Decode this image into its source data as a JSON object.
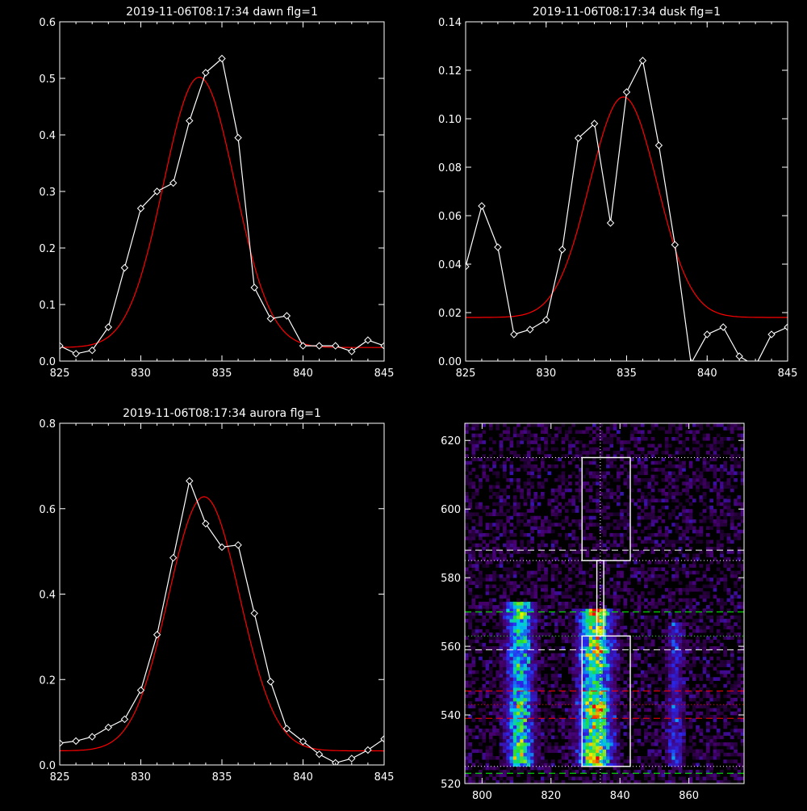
{
  "chart_data": [
    {
      "type": "line",
      "title": "2019-11-06T08:17:34 dawn flg=1",
      "xlim": [
        825,
        845
      ],
      "ylim": [
        0,
        0.6
      ],
      "x_ticks": [
        "825",
        "830",
        "835",
        "840",
        "845"
      ],
      "y_ticks": [
        "0.0",
        "0.1",
        "0.2",
        "0.3",
        "0.4",
        "0.5",
        "0.6"
      ],
      "series": [
        {
          "kind": "data",
          "color": "#ffffff",
          "marker": "diamond",
          "x": [
            825,
            826,
            827,
            828,
            829,
            830,
            831,
            832,
            833,
            834,
            835,
            836,
            837,
            838,
            839,
            840,
            841,
            842,
            843,
            844,
            845
          ],
          "values": [
            0.027,
            0.013,
            0.019,
            0.06,
            0.165,
            0.27,
            0.3,
            0.315,
            0.425,
            0.51,
            0.535,
            0.395,
            0.13,
            0.075,
            0.08,
            0.027,
            0.027,
            0.027,
            0.017,
            0.037,
            0.027
          ]
        },
        {
          "kind": "fit",
          "color": "#ff0000",
          "model": {
            "amplitude": 0.478,
            "center": 833.6,
            "sigma": 2.2,
            "baseline": 0.024
          }
        }
      ]
    },
    {
      "type": "line",
      "title": "2019-11-06T08:17:34 dusk flg=1",
      "xlim": [
        825,
        845
      ],
      "ylim": [
        0,
        0.14
      ],
      "x_ticks": [
        "825",
        "830",
        "835",
        "840",
        "845"
      ],
      "y_ticks": [
        "0.00",
        "0.02",
        "0.04",
        "0.06",
        "0.08",
        "0.10",
        "0.12",
        "0.14"
      ],
      "series": [
        {
          "kind": "data",
          "color": "#ffffff",
          "marker": "diamond",
          "x": [
            825,
            826,
            827,
            828,
            829,
            830,
            831,
            832,
            833,
            834,
            835,
            836,
            837,
            838,
            839,
            840,
            841,
            842,
            843,
            844,
            845
          ],
          "values": [
            0.039,
            0.064,
            0.047,
            0.011,
            0.013,
            0.017,
            0.046,
            0.092,
            0.098,
            0.057,
            0.111,
            0.124,
            0.089,
            0.048,
            -0.001,
            0.011,
            0.014,
            0.002,
            -0.002,
            0.011,
            0.014
          ]
        },
        {
          "kind": "fit",
          "color": "#ff0000",
          "model": {
            "amplitude": 0.091,
            "center": 834.8,
            "sigma": 2.1,
            "baseline": 0.018
          }
        }
      ]
    },
    {
      "type": "line",
      "title": "2019-11-06T08:17:34 aurora flg=1",
      "xlim": [
        825,
        845
      ],
      "ylim": [
        0,
        0.8
      ],
      "x_ticks": [
        "825",
        "830",
        "835",
        "840",
        "845"
      ],
      "y_ticks": [
        "0.0",
        "0.2",
        "0.4",
        "0.6",
        "0.8"
      ],
      "series": [
        {
          "kind": "data",
          "color": "#ffffff",
          "marker": "diamond",
          "x": [
            825,
            826,
            827,
            828,
            829,
            830,
            831,
            832,
            833,
            834,
            835,
            836,
            837,
            838,
            839,
            840,
            841,
            842,
            843,
            844,
            845
          ],
          "values": [
            0.051,
            0.056,
            0.066,
            0.088,
            0.107,
            0.175,
            0.305,
            0.485,
            0.665,
            0.565,
            0.51,
            0.515,
            0.355,
            0.195,
            0.085,
            0.055,
            0.025,
            0.005,
            0.015,
            0.035,
            0.061
          ]
        },
        {
          "kind": "fit",
          "color": "#ff0000",
          "model": {
            "amplitude": 0.595,
            "center": 833.9,
            "sigma": 2.2,
            "baseline": 0.033
          }
        }
      ]
    },
    {
      "type": "heatmap",
      "title": "",
      "xlim": [
        795,
        876
      ],
      "ylim": [
        520,
        625
      ],
      "x_ticks": [
        "800",
        "820",
        "840",
        "860"
      ],
      "y_ticks": [
        "520",
        "540",
        "560",
        "580",
        "600",
        "620"
      ],
      "bands": [
        {
          "x": 811,
          "x_width": 2.5,
          "y_min": 525,
          "y_max": 572,
          "peak": 0.75
        },
        {
          "x": 833,
          "x_width": 3.0,
          "y_min": 525,
          "y_max": 570,
          "peak": 1.0
        },
        {
          "x": 856,
          "x_width": 1.5,
          "y_min": 525,
          "y_max": 566,
          "peak": 0.35
        }
      ],
      "noise_level": 0.12,
      "boxes": [
        {
          "x": [
            829,
            843
          ],
          "y": [
            525,
            563
          ],
          "color": "#ffffff"
        },
        {
          "x": [
            829,
            843
          ],
          "y": [
            585,
            615
          ],
          "color": "#ffffff"
        },
        {
          "x": [
            833.3,
            835.3
          ],
          "y": [
            563,
            585
          ],
          "color": "#ffffff"
        }
      ],
      "hlines": [
        {
          "y": 615,
          "style": "dotted",
          "color": "#ffffff"
        },
        {
          "y": 588,
          "style": "dashed",
          "color": "#ffffff"
        },
        {
          "y": 585,
          "style": "dotted",
          "color": "#ffffff"
        },
        {
          "y": 570,
          "style": "dashed",
          "color": "#00ff00"
        },
        {
          "y": 563,
          "style": "dotted",
          "color": "#00ff00"
        },
        {
          "y": 559,
          "style": "dashed",
          "color": "#ffffff"
        },
        {
          "y": 547,
          "style": "dashed",
          "color": "#ff0000"
        },
        {
          "y": 543,
          "style": "dotted",
          "color": "#ff0000"
        },
        {
          "y": 539,
          "style": "dashed",
          "color": "#ff0000"
        },
        {
          "y": 525,
          "style": "dotted",
          "color": "#ffffff"
        },
        {
          "y": 523,
          "style": "dashed",
          "color": "#00ff00"
        }
      ],
      "vlines": [
        {
          "x": 834.3,
          "style": "dotted",
          "color": "#ffffff"
        }
      ]
    }
  ]
}
